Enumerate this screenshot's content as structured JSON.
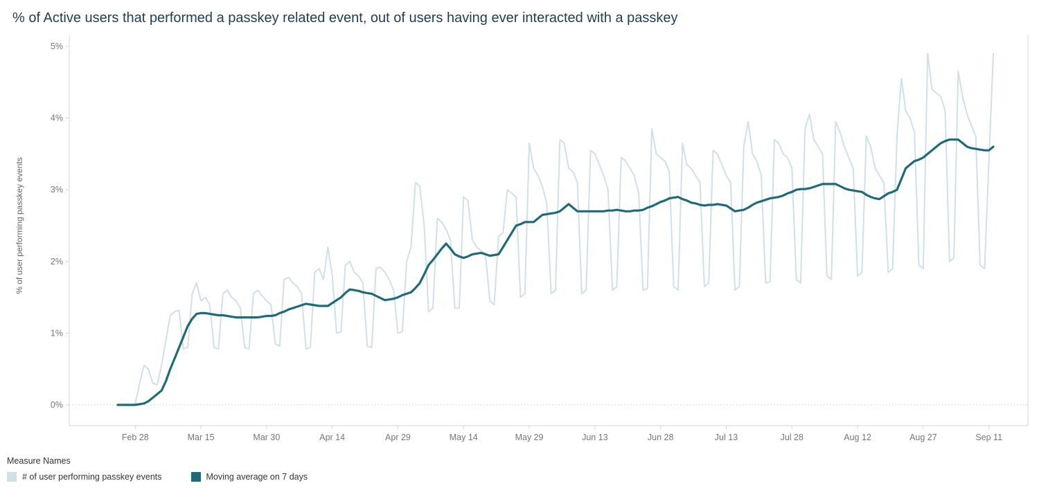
{
  "legend": {
    "title": "Measure Names",
    "items": [
      {
        "label": "# of user performing passkey events",
        "color": "#cfe0e8"
      },
      {
        "label": "Moving average on 7 days",
        "color": "#1f6a7a"
      }
    ]
  },
  "chart_data": {
    "type": "line",
    "title": "% of Active users that performed a passkey related event, out of users having ever interacted with a passkey",
    "xlabel": "",
    "ylabel": "% of user performing passkey events",
    "ylim": [
      0,
      5
    ],
    "y_tick_labels": [
      "0%",
      "1%",
      "2%",
      "3%",
      "4%",
      "5%"
    ],
    "x_tick_labels": [
      "Feb 28",
      "Mar 15",
      "Mar 30",
      "Apr 14",
      "Apr 29",
      "May 14",
      "May 29",
      "Jun 13",
      "Jun 28",
      "Jul 13",
      "Jul 28",
      "Aug 12",
      "Aug 27",
      "Sep 11"
    ],
    "grid": "dotted horizontal line at 0% only",
    "legend_position": "bottom-left",
    "x": [
      "Feb 24",
      "Feb 25",
      "Feb 26",
      "Feb 27",
      "Feb 28",
      "Mar 1",
      "Mar 2",
      "Mar 3",
      "Mar 4",
      "Mar 5",
      "Mar 6",
      "Mar 7",
      "Mar 8",
      "Mar 9",
      "Mar 10",
      "Mar 11",
      "Mar 12",
      "Mar 13",
      "Mar 14",
      "Mar 15",
      "Mar 16",
      "Mar 17",
      "Mar 18",
      "Mar 19",
      "Mar 20",
      "Mar 21",
      "Mar 22",
      "Mar 23",
      "Mar 24",
      "Mar 25",
      "Mar 26",
      "Mar 27",
      "Mar 28",
      "Mar 29",
      "Mar 30",
      "Mar 31",
      "Apr 1",
      "Apr 2",
      "Apr 3",
      "Apr 4",
      "Apr 5",
      "Apr 6",
      "Apr 7",
      "Apr 8",
      "Apr 9",
      "Apr 10",
      "Apr 11",
      "Apr 12",
      "Apr 13",
      "Apr 14",
      "Apr 15",
      "Apr 16",
      "Apr 17",
      "Apr 18",
      "Apr 19",
      "Apr 20",
      "Apr 21",
      "Apr 22",
      "Apr 23",
      "Apr 24",
      "Apr 25",
      "Apr 26",
      "Apr 27",
      "Apr 28",
      "Apr 29",
      "Apr 30",
      "May 1",
      "May 2",
      "May 3",
      "May 4",
      "May 5",
      "May 6",
      "May 7",
      "May 8",
      "May 9",
      "May 10",
      "May 11",
      "May 12",
      "May 13",
      "May 14",
      "May 15",
      "May 16",
      "May 17",
      "May 18",
      "May 19",
      "May 20",
      "May 21",
      "May 22",
      "May 23",
      "May 24",
      "May 25",
      "May 26",
      "May 27",
      "May 28",
      "May 29",
      "May 30",
      "May 31",
      "Jun 1",
      "Jun 2",
      "Jun 3",
      "Jun 4",
      "Jun 5",
      "Jun 6",
      "Jun 7",
      "Jun 8",
      "Jun 9",
      "Jun 10",
      "Jun 11",
      "Jun 12",
      "Jun 13",
      "Jun 14",
      "Jun 15",
      "Jun 16",
      "Jun 17",
      "Jun 18",
      "Jun 19",
      "Jun 20",
      "Jun 21",
      "Jun 22",
      "Jun 23",
      "Jun 24",
      "Jun 25",
      "Jun 26",
      "Jun 27",
      "Jun 28",
      "Jun 29",
      "Jun 30",
      "Jul 1",
      "Jul 2",
      "Jul 3",
      "Jul 4",
      "Jul 5",
      "Jul 6",
      "Jul 7",
      "Jul 8",
      "Jul 9",
      "Jul 10",
      "Jul 11",
      "Jul 12",
      "Jul 13",
      "Jul 14",
      "Jul 15",
      "Jul 16",
      "Jul 17",
      "Jul 18",
      "Jul 19",
      "Jul 20",
      "Jul 21",
      "Jul 22",
      "Jul 23",
      "Jul 24",
      "Jul 25",
      "Jul 26",
      "Jul 27",
      "Jul 28",
      "Jul 29",
      "Jul 30",
      "Jul 31",
      "Aug 1",
      "Aug 2",
      "Aug 3",
      "Aug 4",
      "Aug 5",
      "Aug 6",
      "Aug 7",
      "Aug 8",
      "Aug 9",
      "Aug 10",
      "Aug 11",
      "Aug 12",
      "Aug 13",
      "Aug 14",
      "Aug 15",
      "Aug 16",
      "Aug 17",
      "Aug 18",
      "Aug 19",
      "Aug 20",
      "Aug 21",
      "Aug 22",
      "Aug 23",
      "Aug 24",
      "Aug 25",
      "Aug 26",
      "Aug 27",
      "Aug 28",
      "Aug 29",
      "Aug 30",
      "Aug 31",
      "Sep 1",
      "Sep 2",
      "Sep 3",
      "Sep 4",
      "Sep 5",
      "Sep 6",
      "Sep 7",
      "Sep 8",
      "Sep 9",
      "Sep 10",
      "Sep 11",
      "Sep 12"
    ],
    "series": [
      {
        "name": "# of user performing passkey events",
        "color": "#cfe0e8",
        "values": [
          0,
          0,
          0,
          0,
          0.02,
          0.3,
          0.55,
          0.5,
          0.3,
          0.28,
          0.55,
          0.9,
          1.25,
          1.3,
          1.32,
          0.78,
          0.8,
          1.55,
          1.7,
          1.45,
          1.5,
          1.4,
          0.8,
          0.78,
          1.55,
          1.6,
          1.5,
          1.45,
          1.35,
          0.8,
          0.78,
          1.55,
          1.6,
          1.52,
          1.45,
          1.4,
          0.85,
          0.82,
          1.75,
          1.78,
          1.7,
          1.65,
          1.55,
          0.78,
          0.8,
          1.85,
          1.9,
          1.75,
          2.2,
          1.8,
          1,
          1.02,
          1.95,
          2,
          1.85,
          1.8,
          1.7,
          0.82,
          0.8,
          1.9,
          1.92,
          1.85,
          1.75,
          1.6,
          1,
          1.02,
          2,
          2.2,
          3.1,
          3.05,
          2.5,
          1.3,
          1.35,
          2.6,
          2.55,
          2.45,
          2.3,
          1.35,
          1.35,
          2.9,
          2.85,
          2.3,
          2.2,
          2.15,
          2.1,
          1.45,
          1.4,
          2.35,
          2.4,
          3,
          2.95,
          2.9,
          1.5,
          1.55,
          3.65,
          3.3,
          3.2,
          3.05,
          2.8,
          1.55,
          1.6,
          3.7,
          3.65,
          3.3,
          3.25,
          3.1,
          1.55,
          1.6,
          3.55,
          3.5,
          3.35,
          3.2,
          3,
          1.6,
          1.65,
          3.45,
          3.4,
          3.3,
          3.2,
          2.95,
          1.6,
          1.62,
          3.85,
          3.5,
          3.45,
          3.4,
          3.25,
          1.65,
          1.6,
          3.65,
          3.35,
          3.3,
          3.2,
          3.1,
          1.65,
          1.7,
          3.55,
          3.5,
          3.35,
          3.2,
          3.1,
          1.6,
          1.65,
          3.6,
          3.95,
          3.5,
          3.4,
          3.2,
          1.7,
          1.72,
          3.7,
          3.65,
          3.5,
          3.45,
          3.3,
          1.75,
          1.7,
          3.85,
          4.05,
          3.7,
          3.6,
          3.5,
          1.8,
          1.75,
          3.95,
          3.8,
          3.6,
          3.45,
          3.3,
          1.8,
          1.85,
          3.75,
          3.6,
          3.3,
          3.2,
          3.1,
          1.85,
          1.9,
          3.75,
          4.55,
          4.1,
          4,
          3.8,
          1.95,
          1.9,
          4.9,
          4.4,
          4.35,
          4.3,
          4.1,
          2,
          2.05,
          4.65,
          4.3,
          4.05,
          3.9,
          3.75,
          1.95,
          1.9,
          3.4,
          4.9
        ]
      },
      {
        "name": "Moving average on 7 days",
        "color": "#1f6a7a",
        "values": [
          0,
          0,
          0,
          0,
          0,
          0.01,
          0.02,
          0.05,
          0.1,
          0.15,
          0.2,
          0.33,
          0.5,
          0.65,
          0.8,
          0.95,
          1.1,
          1.2,
          1.27,
          1.28,
          1.28,
          1.27,
          1.26,
          1.25,
          1.25,
          1.24,
          1.23,
          1.22,
          1.22,
          1.22,
          1.22,
          1.22,
          1.22,
          1.23,
          1.24,
          1.24,
          1.25,
          1.28,
          1.3,
          1.33,
          1.35,
          1.37,
          1.39,
          1.41,
          1.4,
          1.39,
          1.38,
          1.38,
          1.38,
          1.42,
          1.46,
          1.5,
          1.56,
          1.61,
          1.6,
          1.59,
          1.57,
          1.56,
          1.55,
          1.52,
          1.49,
          1.46,
          1.47,
          1.48,
          1.5,
          1.53,
          1.55,
          1.57,
          1.63,
          1.7,
          1.82,
          1.95,
          2.02,
          2.1,
          2.18,
          2.25,
          2.18,
          2.1,
          2.07,
          2.05,
          2.07,
          2.1,
          2.11,
          2.12,
          2.1,
          2.08,
          2.09,
          2.1,
          2.2,
          2.3,
          2.4,
          2.5,
          2.52,
          2.55,
          2.55,
          2.55,
          2.6,
          2.65,
          2.66,
          2.67,
          2.68,
          2.7,
          2.75,
          2.8,
          2.75,
          2.7,
          2.7,
          2.7,
          2.7,
          2.7,
          2.7,
          2.7,
          2.71,
          2.71,
          2.72,
          2.71,
          2.7,
          2.7,
          2.71,
          2.71,
          2.72,
          2.75,
          2.77,
          2.8,
          2.83,
          2.85,
          2.88,
          2.89,
          2.9,
          2.87,
          2.85,
          2.82,
          2.81,
          2.79,
          2.78,
          2.79,
          2.79,
          2.8,
          2.79,
          2.78,
          2.74,
          2.7,
          2.71,
          2.72,
          2.75,
          2.79,
          2.82,
          2.84,
          2.86,
          2.88,
          2.89,
          2.9,
          2.92,
          2.95,
          2.97,
          3,
          3.01,
          3.01,
          3.02,
          3.04,
          3.06,
          3.08,
          3.08,
          3.08,
          3.08,
          3.05,
          3.02,
          3,
          2.99,
          2.98,
          2.97,
          2.93,
          2.9,
          2.88,
          2.87,
          2.91,
          2.95,
          2.97,
          3,
          3.15,
          3.3,
          3.35,
          3.4,
          3.42,
          3.45,
          3.5,
          3.55,
          3.6,
          3.65,
          3.68,
          3.7,
          3.7,
          3.7,
          3.65,
          3.6,
          3.58,
          3.57,
          3.56,
          3.55,
          3.55,
          3.6
        ]
      }
    ]
  }
}
